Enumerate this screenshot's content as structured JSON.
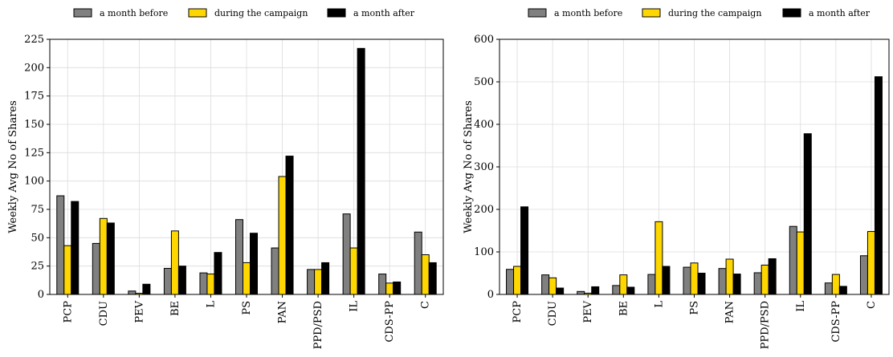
{
  "chart_data": [
    {
      "type": "bar",
      "categories": [
        "PCP",
        "CDU",
        "PEV",
        "BE",
        "L",
        "PS",
        "PAN",
        "PPD/PSD",
        "IL",
        "CDS-PP",
        "C"
      ],
      "series": [
        {
          "name": "a month before",
          "color": "#808080",
          "values": [
            87,
            45,
            3,
            23,
            19,
            66,
            41,
            22,
            71,
            18,
            55
          ]
        },
        {
          "name": "during the campaign",
          "color": "#FFD700",
          "values": [
            43,
            67,
            1,
            56,
            18,
            28,
            104,
            22,
            41,
            10,
            35
          ]
        },
        {
          "name": "a month after",
          "color": "#000000",
          "values": [
            82,
            63,
            9,
            25,
            37,
            54,
            122,
            28,
            217,
            11,
            28
          ]
        }
      ],
      "ylabel": "Weekly Avg No of Shares",
      "ylim": [
        0,
        225
      ],
      "yticks": [
        0,
        25,
        50,
        75,
        100,
        125,
        150,
        175,
        200,
        225
      ],
      "grid": true,
      "legend": "top"
    },
    {
      "type": "bar",
      "categories": [
        "PCP",
        "CDU",
        "PEV",
        "BE",
        "L",
        "PS",
        "PAN",
        "PPD/PSD",
        "IL",
        "CDS-PP",
        "C"
      ],
      "series": [
        {
          "name": "a month before",
          "color": "#808080",
          "values": [
            59,
            46,
            7,
            21,
            47,
            64,
            61,
            51,
            160,
            27,
            91
          ]
        },
        {
          "name": "during the campaign",
          "color": "#FFD700",
          "values": [
            66,
            39,
            3,
            46,
            171,
            74,
            83,
            69,
            147,
            47,
            148
          ]
        },
        {
          "name": "a month after",
          "color": "#000000",
          "values": [
            206,
            15,
            18,
            17,
            66,
            50,
            48,
            84,
            378,
            19,
            512
          ]
        }
      ],
      "ylabel": "Weekly Avg No of Shares",
      "ylim": [
        0,
        600
      ],
      "yticks": [
        0,
        100,
        200,
        300,
        400,
        500,
        600
      ],
      "grid": true,
      "legend": "top"
    }
  ]
}
